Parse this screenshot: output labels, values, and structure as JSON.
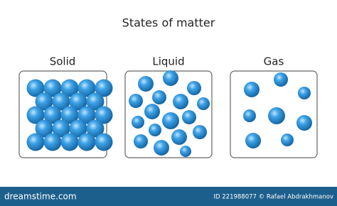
{
  "header": {
    "title": "States of matter"
  },
  "states": [
    {
      "label": "Solid"
    },
    {
      "label": "Liquid"
    },
    {
      "label": "Gas"
    }
  ],
  "footer": {
    "brand": "dreamstime.com",
    "credit": "ID 221988077 © Rafael Abdrakhmanov"
  }
}
